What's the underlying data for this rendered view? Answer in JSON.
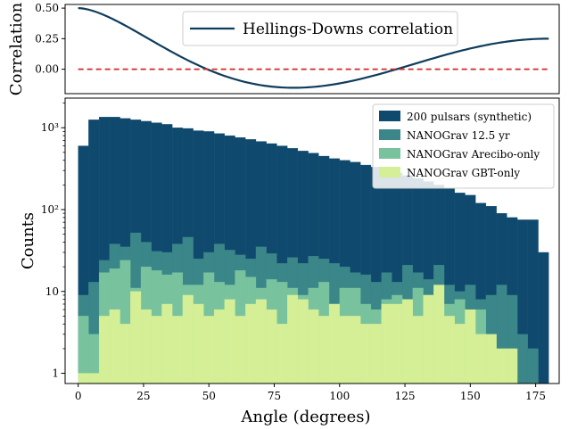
{
  "chart_data": [
    {
      "type": "line",
      "ylabel": "Correlation",
      "xlim": [
        -5,
        184
      ],
      "ylim": [
        -0.2,
        0.53
      ],
      "yticks": [
        0.5,
        0.25,
        0.0
      ],
      "ytick_labels": [
        "0.50",
        "0.25",
        "0.00"
      ],
      "series": [
        {
          "name": "Hellings-Downs correlation",
          "color": "#0f3d5c",
          "style": "solid",
          "formula": "hellings-downs",
          "x_range": [
            0,
            180
          ]
        },
        {
          "color": "#d62728",
          "style": "dashed",
          "constant_y": 0.0,
          "x_range": [
            0,
            180
          ]
        }
      ],
      "legend": {
        "position": "top-center"
      }
    },
    {
      "type": "bar",
      "subtype": "histogram",
      "xlabel": "Angle (degrees)",
      "ylabel": "Counts",
      "yscale": "log",
      "xlim": [
        -5,
        184
      ],
      "ylim": [
        0.75,
        2300
      ],
      "xticks": [
        0,
        25,
        50,
        75,
        100,
        125,
        150,
        175
      ],
      "xtick_labels": [
        "0",
        "25",
        "50",
        "75",
        "100",
        "125",
        "150",
        "175"
      ],
      "yticks": [
        1,
        10,
        100,
        1000
      ],
      "ytick_labels": [
        "1",
        "10",
        "10²",
        "10³"
      ],
      "bin_width": 4,
      "bins_start": 0,
      "legend": {
        "position": "top-right"
      },
      "series": [
        {
          "name": "200 pulsars (synthetic)",
          "color": "#0f4a6e",
          "values": [
            600,
            1250,
            1350,
            1350,
            1300,
            1250,
            1200,
            1150,
            1100,
            1000,
            980,
            920,
            900,
            850,
            800,
            760,
            720,
            680,
            640,
            600,
            560,
            520,
            490,
            450,
            420,
            400,
            380,
            350,
            330,
            300,
            280,
            260,
            240,
            220,
            200,
            180,
            160,
            150,
            120,
            110,
            90,
            80,
            75,
            75,
            30
          ]
        },
        {
          "name": "NANOGrav 12.5 yr",
          "color": "#3b8688",
          "values": [
            9,
            13,
            24,
            38,
            35,
            52,
            40,
            31,
            30,
            38,
            46,
            25,
            30,
            38,
            32,
            28,
            25,
            35,
            29,
            22,
            26,
            22,
            27,
            25,
            22,
            20,
            17,
            16,
            13,
            17,
            13,
            21,
            17,
            14,
            21,
            12,
            10,
            12,
            8,
            9,
            12,
            9,
            3,
            2,
            0
          ]
        },
        {
          "name": "NANOGrav Arecibo-only",
          "color": "#78c39e",
          "values": [
            5,
            3,
            17,
            19,
            24,
            11,
            20,
            18,
            16,
            17,
            12,
            12,
            17,
            13,
            12,
            18,
            15,
            11,
            14,
            13,
            11,
            9,
            11,
            13,
            7,
            11,
            11,
            7,
            6,
            8,
            9,
            8,
            11,
            9,
            7,
            7,
            8,
            6,
            6,
            2,
            1,
            0,
            0,
            0,
            0
          ]
        },
        {
          "name": "NANOGrav GBT-only",
          "color": "#d4ef96",
          "values": [
            1,
            1,
            5,
            6,
            4,
            10,
            6,
            5,
            7,
            5,
            9,
            7,
            5,
            6,
            8,
            5,
            7,
            8,
            6,
            4,
            9,
            8,
            6,
            5,
            7,
            5,
            5,
            4,
            4,
            7,
            7,
            8,
            5,
            9,
            12,
            5,
            4,
            6,
            3,
            3,
            2,
            2,
            0,
            0,
            0
          ]
        }
      ]
    }
  ]
}
